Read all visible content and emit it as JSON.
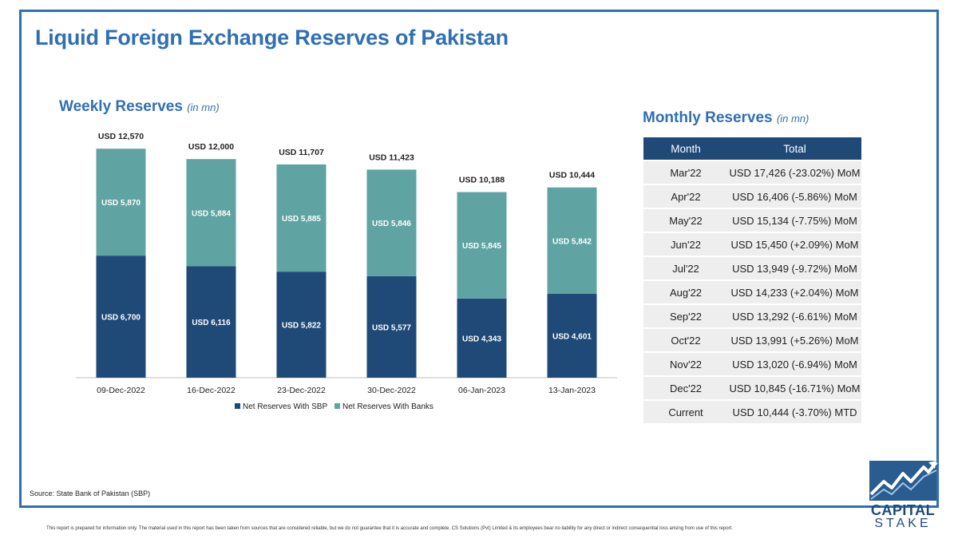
{
  "page": {
    "title": "Liquid Foreign Exchange Reserves of Pakistan",
    "source": "Source: State Bank of Pakistan (SBP)",
    "disclaimer": "This report is prepared for information only. The material used in this report has been taken from sources that are considered reliable, but we do not guarantee that it is accurate and complete. CS Solutions (Pvt) Limited & its employees bear no liability for any direct or indirect consequential loss arising from use of this report."
  },
  "weekly": {
    "title": "Weekly Reserves",
    "unit": "(in mn)"
  },
  "monthly": {
    "title": "Monthly Reserves",
    "unit": "(in mn)",
    "headers": [
      "Month",
      "Total"
    ],
    "rows": [
      [
        "Mar'22",
        "USD 17,426 (-23.02%) MoM"
      ],
      [
        "Apr'22",
        "USD 16,406 (-5.86%) MoM"
      ],
      [
        "May'22",
        "USD 15,134 (-7.75%) MoM"
      ],
      [
        "Jun'22",
        "USD 15,450 (+2.09%) MoM"
      ],
      [
        "Jul'22",
        "USD 13,949 (-9.72%) MoM"
      ],
      [
        "Aug'22",
        "USD 14,233 (+2.04%) MoM"
      ],
      [
        "Sep'22",
        "USD 13,292 (-6.61%) MoM"
      ],
      [
        "Oct'22",
        "USD 13,991 (+5.26%) MoM"
      ],
      [
        "Nov'22",
        "USD 13,020 (-6.94%) MoM"
      ],
      [
        "Dec'22",
        "USD 10,845 (-16.71%) MoM"
      ],
      [
        "Current",
        "USD 10,444 (-3.70%) MTD"
      ]
    ]
  },
  "logo": {
    "line1": "CAPITAL",
    "line2": "STAKE"
  },
  "colors": {
    "accent": "#2f6fb3",
    "sbp": "#1f4a78",
    "banks": "#5fa3a3",
    "header": "#1f4a78"
  },
  "chart_data": {
    "type": "bar",
    "stacked": true,
    "categories": [
      "09-Dec-2022",
      "16-Dec-2022",
      "23-Dec-2022",
      "30-Dec-2022",
      "06-Jan-2023",
      "13-Jan-2023"
    ],
    "series": [
      {
        "name": "Net Reserves With SBP",
        "values": [
          6700,
          6116,
          5822,
          5577,
          4343,
          4601
        ],
        "labels": [
          "USD 6,700",
          "USD 6,116",
          "USD 5,822",
          "USD 5,577",
          "USD 4,343",
          "USD 4,601"
        ]
      },
      {
        "name": "Net Reserves With Banks",
        "values": [
          5870,
          5884,
          5885,
          5846,
          5845,
          5842
        ],
        "labels": [
          "USD 5,870",
          "USD 5,884",
          "USD 5,885",
          "USD 5,846",
          "USD 5,845",
          "USD 5,842"
        ]
      }
    ],
    "totals": [
      12570,
      12000,
      11707,
      11423,
      10188,
      10444
    ],
    "total_labels": [
      "USD 12,570",
      "USD 12,000",
      "USD 11,707",
      "USD 11,423",
      "USD 10,188",
      "USD 10,444"
    ],
    "ylim": [
      0,
      13500
    ],
    "legend": "bottom",
    "grid": false
  }
}
